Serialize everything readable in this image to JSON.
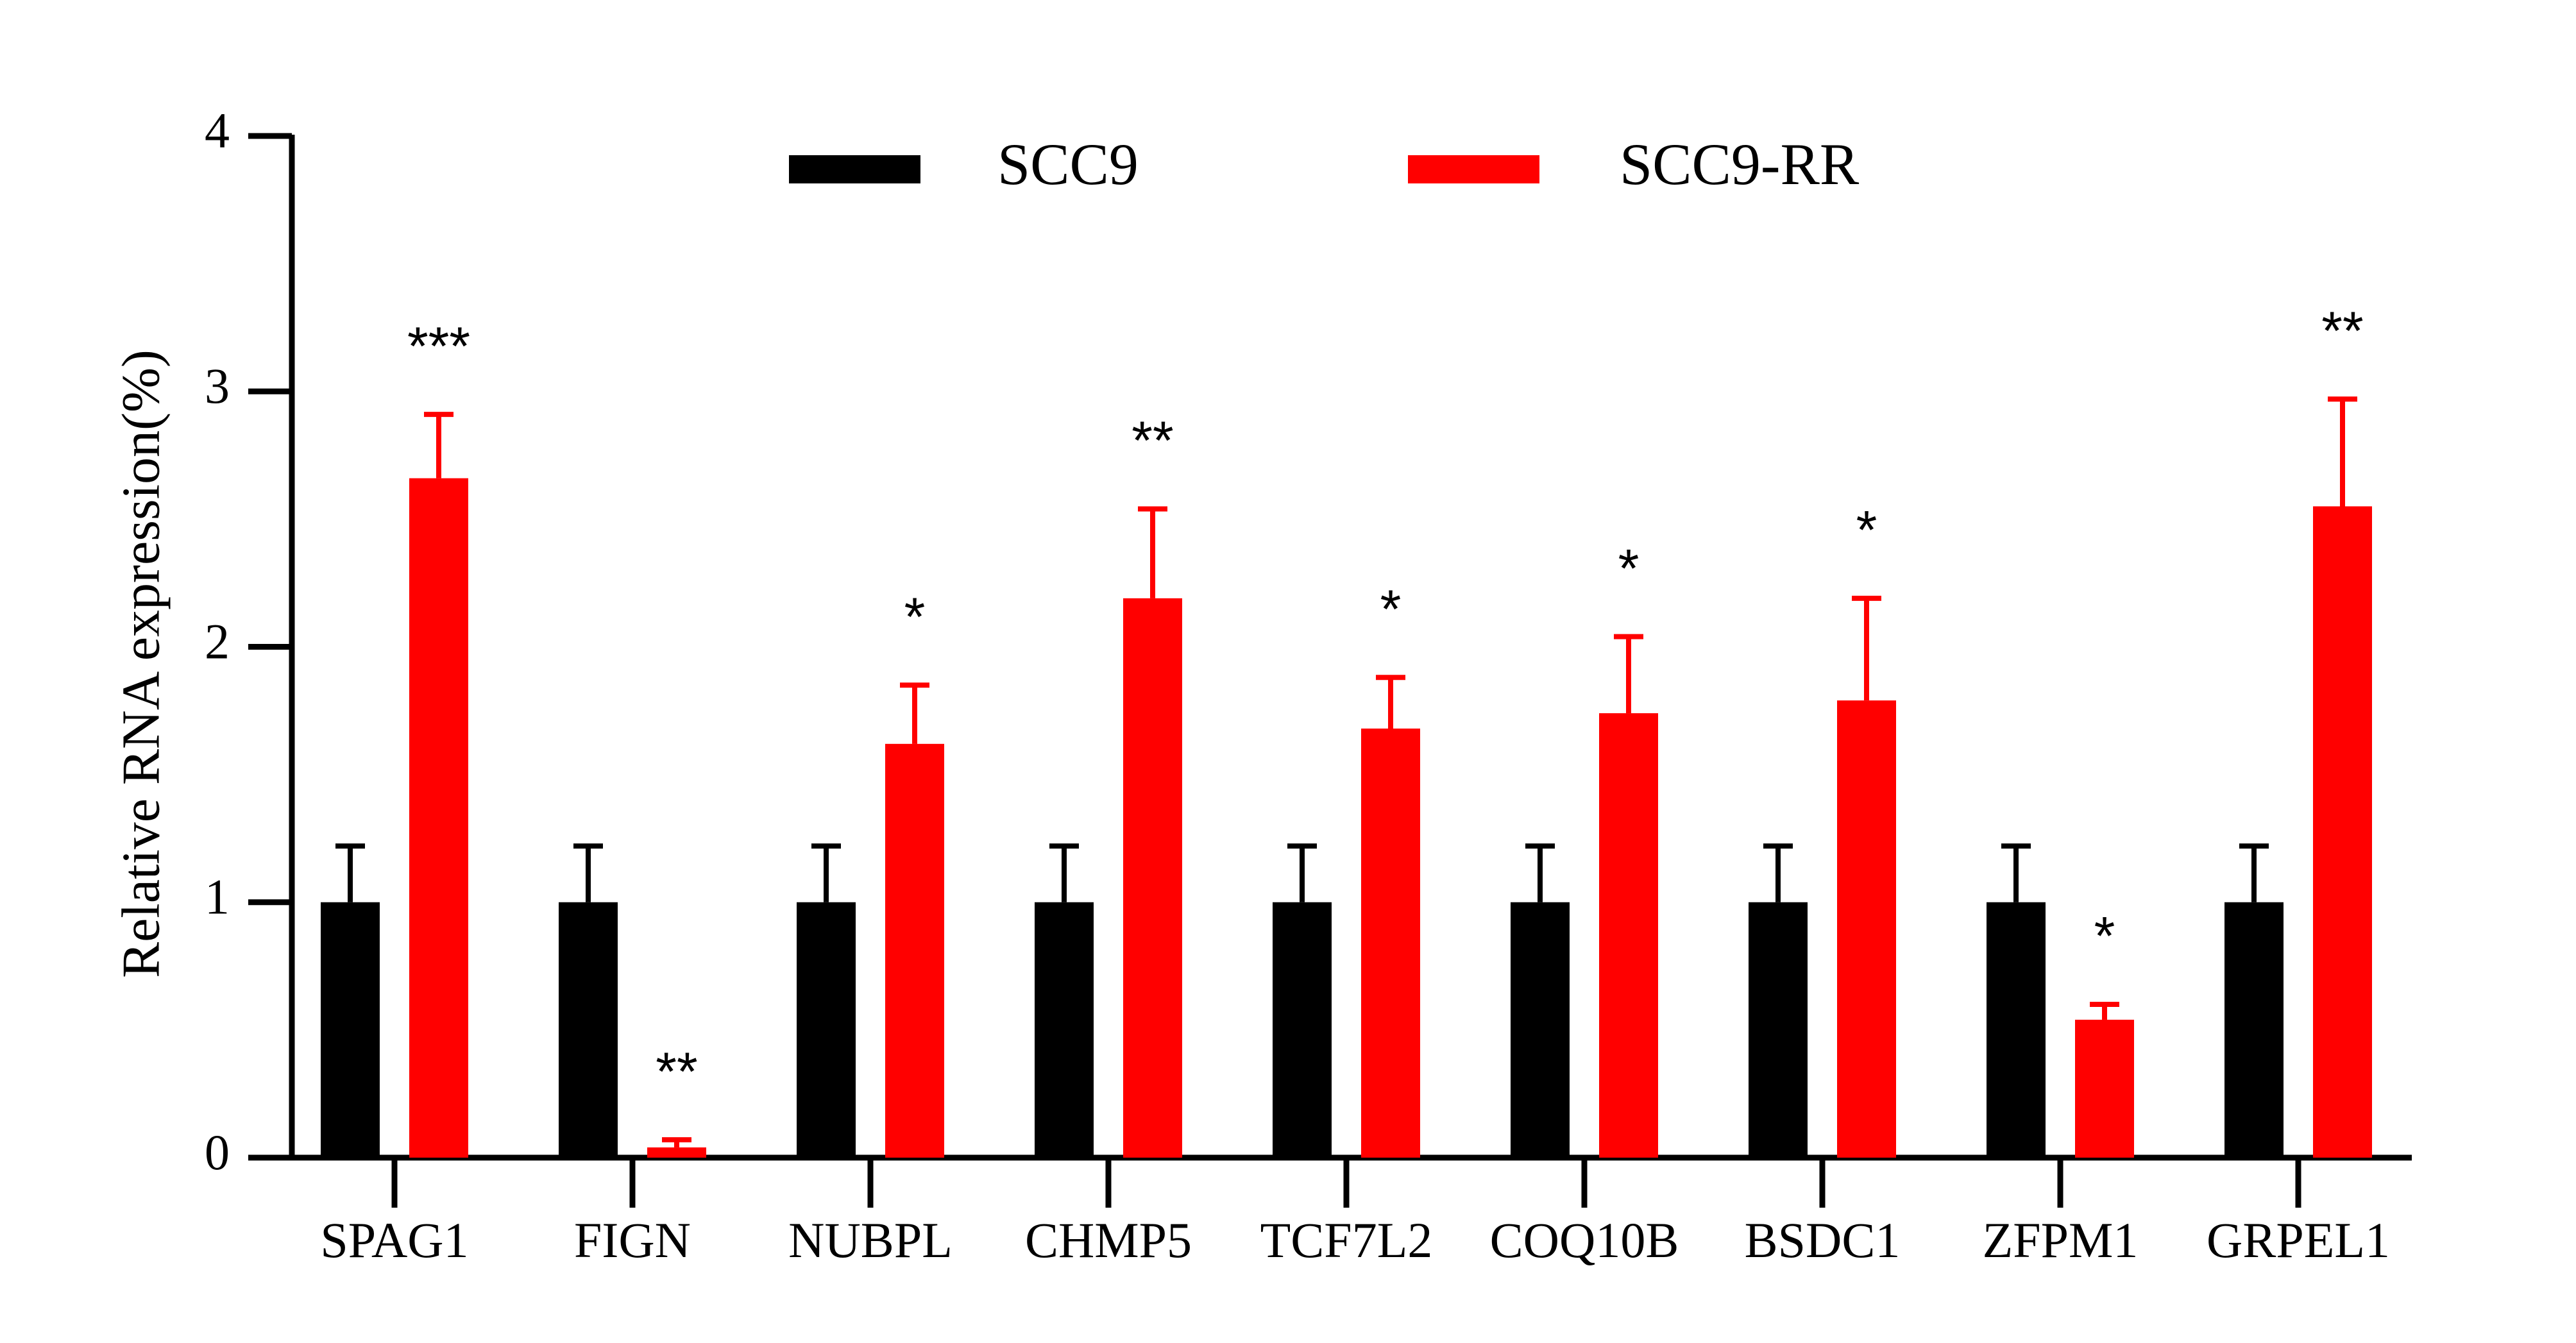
{
  "chart_data": {
    "type": "bar",
    "title": "",
    "xlabel": "",
    "ylabel": "Relative  RNA expression(%)",
    "ylim": [
      0,
      4
    ],
    "yticks": [
      0,
      1,
      2,
      3,
      4
    ],
    "ytick_labels": [
      "0",
      "1",
      "2",
      "3",
      "4"
    ],
    "grid": false,
    "legend_position": "top",
    "categories": [
      "SPAG1",
      "FIGN",
      "NUBPL",
      "CHMP5",
      "TCF7L2",
      "COQ10B",
      "BSDC1",
      "ZFPM1",
      "GRPEL1"
    ],
    "series": [
      {
        "name": "SCC9",
        "color": "#000000",
        "values": [
          1.0,
          1.0,
          1.0,
          1.0,
          1.0,
          1.0,
          1.0,
          1.0,
          1.0
        ],
        "errors": [
          0.22,
          0.22,
          0.22,
          0.22,
          0.22,
          0.22,
          0.22,
          0.22,
          0.22
        ]
      },
      {
        "name": "SCC9-RR",
        "color": "#ff0000",
        "values": [
          2.66,
          0.04,
          1.62,
          2.19,
          1.68,
          1.74,
          1.79,
          0.54,
          2.55
        ],
        "errors": [
          0.25,
          0.03,
          0.23,
          0.35,
          0.2,
          0.3,
          0.4,
          0.06,
          0.42
        ]
      }
    ],
    "significance": [
      "***",
      "**",
      "*",
      "**",
      "*",
      "*",
      "*",
      "*",
      "**"
    ]
  }
}
